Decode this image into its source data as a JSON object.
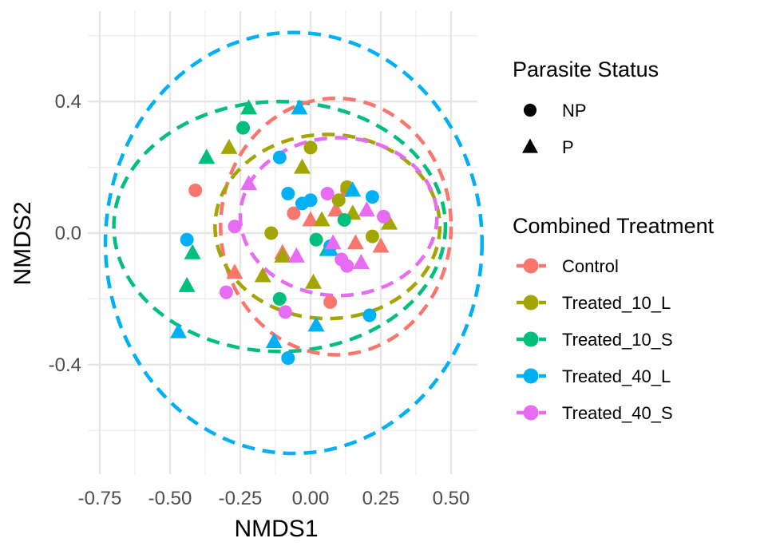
{
  "chart_data": {
    "type": "scatter",
    "xlabel": "NMDS1",
    "ylabel": "NMDS2",
    "xlim": [
      -0.78,
      0.55
    ],
    "ylim": [
      -0.74,
      0.66
    ],
    "x_ticks": [
      -0.75,
      -0.5,
      -0.25,
      0.0,
      0.25,
      0.5
    ],
    "x_tick_labels": [
      "-0.75",
      "-0.50",
      "-0.25",
      "0.00",
      "0.25",
      "0.50"
    ],
    "y_ticks": [
      -0.4,
      0.0,
      0.4
    ],
    "y_tick_labels": [
      "-0.4",
      "0.0",
      "0.4"
    ],
    "grid": true,
    "legend_position": "right",
    "colors": {
      "Control": "#F8766D",
      "Treated_10_L": "#A3A500",
      "Treated_10_S": "#00BF7D",
      "Treated_40_L": "#00B0F6",
      "Treated_40_S": "#E76BF3"
    },
    "shape_legend": {
      "title": "Parasite Status",
      "entries": [
        {
          "label": "NP",
          "shape": "circle"
        },
        {
          "label": "P",
          "shape": "triangle"
        }
      ]
    },
    "color_legend": {
      "title": "Combined Treatment",
      "entries": [
        "Control",
        "Treated_10_L",
        "Treated_10_S",
        "Treated_40_L",
        "Treated_40_S"
      ]
    },
    "ellipses": [
      {
        "group": "Treated_40_L",
        "cx": -0.06,
        "cy": -0.03,
        "rx": 0.67,
        "ry": 0.64
      },
      {
        "group": "Treated_10_S",
        "cx": -0.11,
        "cy": 0.02,
        "rx": 0.59,
        "ry": 0.38
      },
      {
        "group": "Control",
        "cx": 0.09,
        "cy": 0.02,
        "rx": 0.41,
        "ry": 0.39
      },
      {
        "group": "Treated_10_L",
        "cx": 0.06,
        "cy": 0.02,
        "rx": 0.4,
        "ry": 0.28
      },
      {
        "group": "Treated_40_S",
        "cx": 0.1,
        "cy": 0.05,
        "rx": 0.35,
        "ry": 0.24
      }
    ],
    "series": [
      {
        "name": "Control",
        "points": [
          {
            "x": -0.41,
            "y": 0.13,
            "status": "NP"
          },
          {
            "x": -0.06,
            "y": 0.06,
            "status": "NP"
          },
          {
            "x": 0.07,
            "y": -0.21,
            "status": "NP"
          },
          {
            "x": 0.13,
            "y": 0.13,
            "status": "NP"
          },
          {
            "x": -0.1,
            "y": -0.06,
            "status": "P"
          },
          {
            "x": 0.0,
            "y": 0.04,
            "status": "P"
          },
          {
            "x": 0.09,
            "y": 0.07,
            "status": "P"
          },
          {
            "x": 0.16,
            "y": -0.03,
            "status": "P"
          },
          {
            "x": 0.25,
            "y": -0.04,
            "status": "P"
          },
          {
            "x": -0.27,
            "y": -0.12,
            "status": "P"
          }
        ]
      },
      {
        "name": "Treated_10_L",
        "points": [
          {
            "x": -0.0,
            "y": 0.26,
            "status": "NP"
          },
          {
            "x": 0.1,
            "y": 0.1,
            "status": "NP"
          },
          {
            "x": 0.13,
            "y": 0.14,
            "status": "NP"
          },
          {
            "x": 0.22,
            "y": -0.01,
            "status": "NP"
          },
          {
            "x": -0.14,
            "y": 0.0,
            "status": "NP"
          },
          {
            "x": -0.29,
            "y": 0.26,
            "status": "P"
          },
          {
            "x": -0.03,
            "y": 0.2,
            "status": "P"
          },
          {
            "x": 0.04,
            "y": 0.04,
            "status": "P"
          },
          {
            "x": 0.15,
            "y": 0.06,
            "status": "P"
          },
          {
            "x": -0.1,
            "y": -0.07,
            "status": "P"
          },
          {
            "x": 0.01,
            "y": -0.15,
            "status": "P"
          },
          {
            "x": 0.28,
            "y": 0.03,
            "status": "P"
          },
          {
            "x": -0.17,
            "y": -0.13,
            "status": "P"
          }
        ]
      },
      {
        "name": "Treated_10_S",
        "points": [
          {
            "x": -0.24,
            "y": 0.32,
            "status": "NP"
          },
          {
            "x": -0.11,
            "y": -0.2,
            "status": "NP"
          },
          {
            "x": 0.02,
            "y": -0.02,
            "status": "NP"
          },
          {
            "x": 0.12,
            "y": 0.04,
            "status": "NP"
          },
          {
            "x": -0.37,
            "y": 0.23,
            "status": "P"
          },
          {
            "x": -0.22,
            "y": 0.38,
            "status": "P"
          },
          {
            "x": -0.42,
            "y": -0.06,
            "status": "P"
          },
          {
            "x": -0.44,
            "y": -0.16,
            "status": "P"
          },
          {
            "x": 0.06,
            "y": -0.05,
            "status": "P"
          }
        ]
      },
      {
        "name": "Treated_40_L",
        "points": [
          {
            "x": -0.11,
            "y": 0.23,
            "status": "NP"
          },
          {
            "x": -0.08,
            "y": 0.12,
            "status": "NP"
          },
          {
            "x": -0.03,
            "y": 0.09,
            "status": "NP"
          },
          {
            "x": 0.07,
            "y": -0.04,
            "status": "NP"
          },
          {
            "x": 0.22,
            "y": 0.11,
            "status": "NP"
          },
          {
            "x": 0.21,
            "y": -0.25,
            "status": "NP"
          },
          {
            "x": -0.08,
            "y": -0.38,
            "status": "NP"
          },
          {
            "x": -0.44,
            "y": -0.02,
            "status": "NP"
          },
          {
            "x": 0.0,
            "y": 0.1,
            "status": "NP"
          },
          {
            "x": -0.04,
            "y": 0.38,
            "status": "P"
          },
          {
            "x": 0.15,
            "y": 0.13,
            "status": "P"
          },
          {
            "x": -0.13,
            "y": -0.33,
            "status": "P"
          },
          {
            "x": 0.02,
            "y": -0.28,
            "status": "P"
          },
          {
            "x": -0.47,
            "y": -0.3,
            "status": "P"
          },
          {
            "x": 0.07,
            "y": -0.05,
            "status": "P"
          }
        ]
      },
      {
        "name": "Treated_40_S",
        "points": [
          {
            "x": 0.06,
            "y": 0.12,
            "status": "NP"
          },
          {
            "x": 0.13,
            "y": -0.1,
            "status": "NP"
          },
          {
            "x": 0.26,
            "y": 0.05,
            "status": "NP"
          },
          {
            "x": -0.27,
            "y": 0.02,
            "status": "NP"
          },
          {
            "x": -0.3,
            "y": -0.18,
            "status": "NP"
          },
          {
            "x": -0.09,
            "y": -0.24,
            "status": "NP"
          },
          {
            "x": 0.11,
            "y": -0.08,
            "status": "NP"
          },
          {
            "x": -0.22,
            "y": 0.15,
            "status": "P"
          },
          {
            "x": 0.08,
            "y": -0.03,
            "status": "P"
          },
          {
            "x": 0.2,
            "y": 0.07,
            "status": "P"
          },
          {
            "x": -0.05,
            "y": -0.07,
            "status": "P"
          },
          {
            "x": 0.18,
            "y": -0.09,
            "status": "P"
          }
        ]
      }
    ]
  }
}
